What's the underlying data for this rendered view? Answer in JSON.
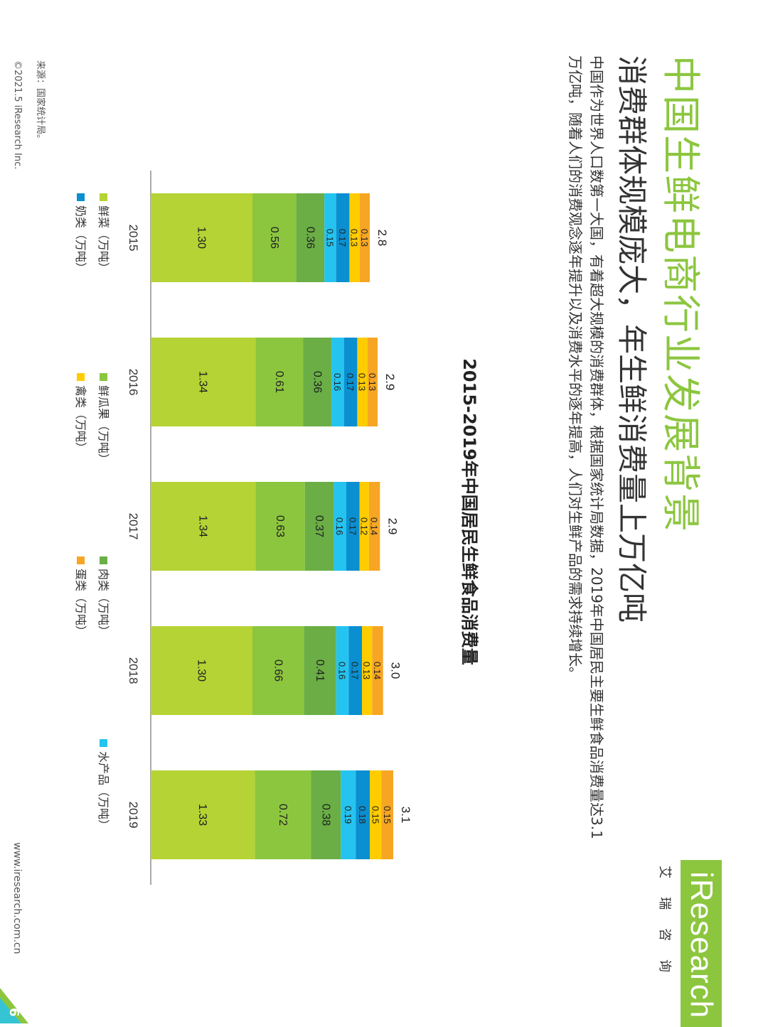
{
  "header": {
    "title": "中国生鲜电商行业发展背景",
    "subtitle": "消费群体规模庞大，年生鲜消费量上万亿吨",
    "description": "中国作为世界人口数第一大国，有着超大规模的消费群体，根据国家统计局数据，2019年中国居民主要生鲜食品消费量达3.1万亿吨，随着人们的消费观念逐年提升以及消费水平的逐年提高，人们对生鲜产品的需求持续增长。"
  },
  "logo": {
    "text_en": "iResearch",
    "text_cn": "艾瑞咨询",
    "color": "#8cc63f"
  },
  "footer": {
    "source": "来源：国家统计局。",
    "copyright": "©2021.5 iResearch Inc.",
    "website": "www.iresearch.com.cn",
    "page_number": "6"
  },
  "chart_data": {
    "type": "bar",
    "stacked": true,
    "title": "2015-2019年中国居民生鲜食品消费量",
    "categories": [
      "2015",
      "2016",
      "2017",
      "2018",
      "2019"
    ],
    "series": [
      {
        "name": "鲜菜（万吨）",
        "color": "#b5d334",
        "values": [
          1.3,
          1.34,
          1.34,
          1.3,
          1.33
        ]
      },
      {
        "name": "鲜瓜果（万吨）",
        "color": "#8cc63f",
        "values": [
          0.56,
          0.61,
          0.63,
          0.66,
          0.72
        ]
      },
      {
        "name": "肉类（万吨）",
        "color": "#6aae45",
        "values": [
          0.36,
          0.36,
          0.37,
          0.41,
          0.38
        ]
      },
      {
        "name": "水产品（万吨）",
        "color": "#25c3ef",
        "values": [
          0.15,
          0.16,
          0.16,
          0.16,
          0.19
        ]
      },
      {
        "name": "奶类（万吨）",
        "color": "#0a8fd0",
        "values": [
          0.17,
          0.17,
          0.17,
          0.17,
          0.18
        ]
      },
      {
        "name": "禽类（万吨）",
        "color": "#ffcc00",
        "values": [
          0.13,
          0.13,
          0.12,
          0.13,
          0.15
        ]
      },
      {
        "name": "蛋类（万吨）",
        "color": "#f6a623",
        "values": [
          0.13,
          0.13,
          0.14,
          0.14,
          0.15
        ]
      }
    ],
    "totals": [
      "2.8",
      "2.9",
      "2.9",
      "3.0",
      "3.1"
    ],
    "legend_position": "bottom",
    "grid": false
  }
}
